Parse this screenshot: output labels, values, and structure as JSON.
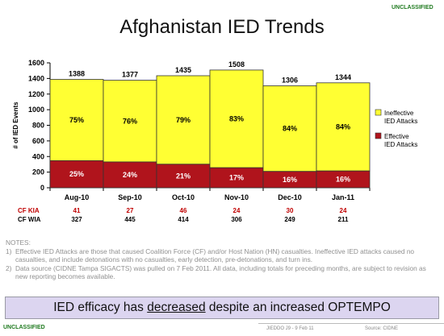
{
  "classification": {
    "top": "UNCLASSIFIED",
    "bottom": "UNCLASSIFIED"
  },
  "slide_title": "Afghanistan IED Trends",
  "chart_data": {
    "type": "bar",
    "stacked": true,
    "categories": [
      "Aug-10",
      "Sep-10",
      "Oct-10",
      "Nov-10",
      "Dec-10",
      "Jan-11"
    ],
    "totals": [
      1388,
      1377,
      1435,
      1508,
      1306,
      1344
    ],
    "totals_labels": [
      "1388",
      "1377",
      "1435",
      "1508",
      "1306",
      "1344"
    ],
    "series": [
      {
        "name": "Effective IED Attacks",
        "legend_lines": [
          "Effective",
          "IED Attacks"
        ],
        "color": "#b0141c",
        "percent": [
          25,
          24,
          21,
          17,
          16,
          16
        ],
        "labels": [
          "25%",
          "24%",
          "21%",
          "17%",
          "16%",
          "16%"
        ]
      },
      {
        "name": "Ineffective IED Attacks",
        "legend_lines": [
          "Ineffective",
          "IED Attacks"
        ],
        "color": "#ffff33",
        "percent": [
          75,
          76,
          79,
          83,
          84,
          84
        ],
        "labels": [
          "75%",
          "76%",
          "79%",
          "83%",
          "84%",
          "84%"
        ]
      }
    ],
    "ylabel": "# of IED Events",
    "ylim": [
      0,
      1600
    ],
    "yticks": [
      0,
      200,
      400,
      600,
      800,
      1000,
      1200,
      1400,
      1600
    ],
    "ytick_labels": [
      "0",
      "200",
      "400",
      "600",
      "800",
      "1000",
      "1200",
      "1400",
      "1600"
    ],
    "grid": false,
    "legend_position": "right"
  },
  "stats_rows": [
    {
      "label": "CF KIA",
      "color": "#c00000",
      "values": [
        "41",
        "27",
        "46",
        "24",
        "30",
        "24"
      ]
    },
    {
      "label": "CF WIA",
      "color": "#000000",
      "values": [
        "327",
        "445",
        "414",
        "306",
        "249",
        "211"
      ]
    }
  ],
  "notes": {
    "heading": "NOTES:",
    "items": [
      {
        "num": "1)",
        "text": "Effective IED Attacks are those that caused Coalition Force (CF) and/or Host Nation (HN) casualties. Ineffective IED attacks caused no casualties, and include detonations with no casualties, early detection, pre-detonations, and turn ins."
      },
      {
        "num": "2)",
        "text": "Data source (CIDNE Tampa SIGACTS) was pulled on 7 Feb 2011.  All data, including totals for preceding months, are subject to revision as new reporting becomes available."
      }
    ]
  },
  "banner": {
    "pre": "IED efficacy has ",
    "emph": "decreased",
    "post": " despite an increased OPTEMPO"
  },
  "footer": {
    "mid": "JIEDDO J9 - 9 Feb 11",
    "source": "Source:  CIDNE"
  }
}
